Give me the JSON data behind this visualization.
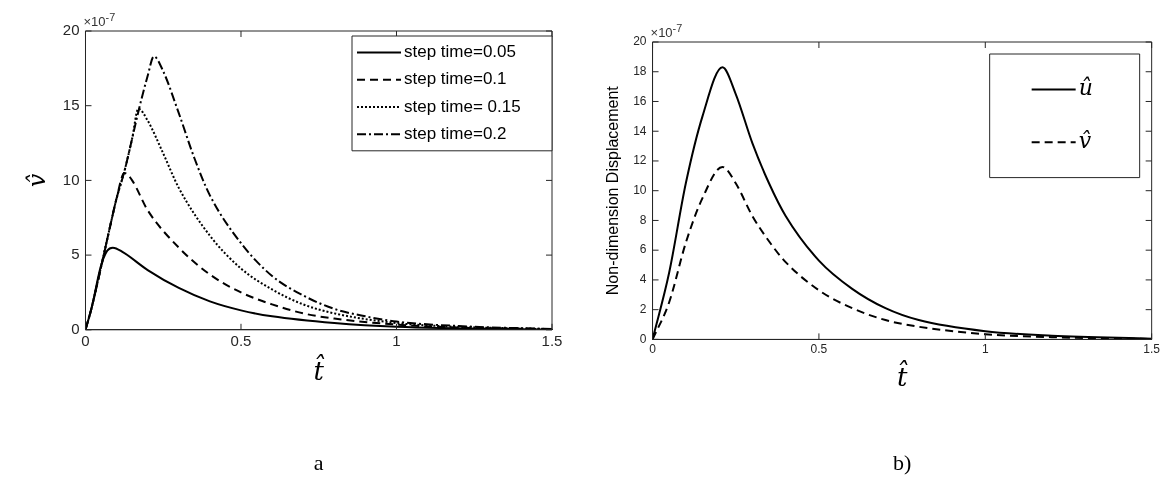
{
  "chart_data": [
    {
      "type": "line",
      "xlabel": "t̂",
      "ylabel": "v̂",
      "xlim": [
        0,
        1.5
      ],
      "xticks": [
        0,
        0.5,
        1,
        1.5
      ],
      "ylim": [
        0,
        20
      ],
      "yticks": [
        0,
        5,
        10,
        15,
        20
      ],
      "grid": false,
      "legend": "top right",
      "marker": "none",
      "annotations": [
        "×10$^{-7}$",
        "a"
      ],
      "series": [
        {
          "name": "step time=0.05",
          "color": "#000000",
          "line_style": "solid",
          "x": [
            0,
            0.02,
            0.05,
            0.07,
            0.088,
            0.12,
            0.2,
            0.3,
            0.4,
            0.5,
            0.6,
            0.8,
            1.0,
            1.5
          ],
          "values": [
            0,
            1.5,
            4.3,
            5.3,
            5.5,
            5.2,
            4.0,
            2.8,
            1.9,
            1.3,
            0.9,
            0.45,
            0.2,
            0.02
          ]
        },
        {
          "name": "step time=0.1",
          "color": "#000000",
          "line_style": "dashed",
          "x": [
            0,
            0.02,
            0.05,
            0.08,
            0.1,
            0.125,
            0.15,
            0.2,
            0.3,
            0.4,
            0.5,
            0.6,
            0.7,
            0.8,
            1.0,
            1.2,
            1.5
          ],
          "values": [
            0,
            1.5,
            4.2,
            7.0,
            8.8,
            10.5,
            10.0,
            8.0,
            5.5,
            3.7,
            2.5,
            1.7,
            1.1,
            0.75,
            0.35,
            0.15,
            0.03
          ]
        },
        {
          "name": "step time= 0.15",
          "color": "#000000",
          "line_style": "dotted",
          "x": [
            0,
            0.02,
            0.05,
            0.08,
            0.1,
            0.125,
            0.15,
            0.17,
            0.2,
            0.25,
            0.3,
            0.4,
            0.5,
            0.6,
            0.7,
            0.8,
            1.0,
            1.2,
            1.5
          ],
          "values": [
            0,
            1.5,
            4.2,
            7.0,
            8.8,
            10.6,
            12.8,
            14.8,
            14.0,
            11.8,
            9.5,
            6.3,
            4.1,
            2.7,
            1.7,
            1.1,
            0.45,
            0.2,
            0.05
          ]
        },
        {
          "name": "step time=0.2",
          "color": "#000000",
          "line_style": "dashdot",
          "x": [
            0,
            0.02,
            0.05,
            0.08,
            0.1,
            0.125,
            0.15,
            0.17,
            0.2,
            0.22,
            0.25,
            0.3,
            0.35,
            0.4,
            0.5,
            0.6,
            0.7,
            0.8,
            0.9,
            1.0,
            1.2,
            1.5
          ],
          "values": [
            0,
            1.5,
            4.2,
            7.0,
            8.8,
            10.6,
            12.8,
            14.6,
            17.0,
            18.3,
            17.3,
            14.5,
            11.5,
            9.0,
            5.8,
            3.6,
            2.3,
            1.4,
            0.9,
            0.55,
            0.25,
            0.05
          ]
        }
      ]
    },
    {
      "type": "line",
      "xlabel": "t̂",
      "ylabel": "Non-dimension Displacement",
      "xlim": [
        0,
        1.5
      ],
      "xticks": [
        0,
        0.5,
        1,
        1.5
      ],
      "ylim": [
        0,
        20
      ],
      "yticks": [
        0,
        2,
        4,
        6,
        8,
        10,
        12,
        14,
        16,
        18,
        20
      ],
      "grid": false,
      "legend": "top right",
      "marker": "none",
      "annotations": [
        "×10$^{-7}$",
        "b)"
      ],
      "series": [
        {
          "name": "û",
          "color": "#000000",
          "line_style": "solid",
          "x": [
            0,
            0.05,
            0.1,
            0.15,
            0.21,
            0.25,
            0.3,
            0.35,
            0.4,
            0.5,
            0.6,
            0.7,
            0.8,
            1.0,
            1.2,
            1.5
          ],
          "values": [
            0,
            4.5,
            10.5,
            15,
            18.3,
            16.5,
            13.2,
            10.5,
            8.3,
            5.3,
            3.4,
            2.1,
            1.3,
            0.55,
            0.25,
            0.05
          ]
        },
        {
          "name": "v̂",
          "color": "#000000",
          "line_style": "dashed",
          "x": [
            0,
            0.05,
            0.1,
            0.15,
            0.21,
            0.25,
            0.3,
            0.35,
            0.4,
            0.5,
            0.6,
            0.7,
            0.8,
            1.0,
            1.2,
            1.5
          ],
          "values": [
            0,
            2.5,
            6.5,
            9.5,
            11.6,
            10.5,
            8.3,
            6.6,
            5.2,
            3.3,
            2.1,
            1.3,
            0.85,
            0.35,
            0.15,
            0.03
          ]
        }
      ]
    }
  ]
}
